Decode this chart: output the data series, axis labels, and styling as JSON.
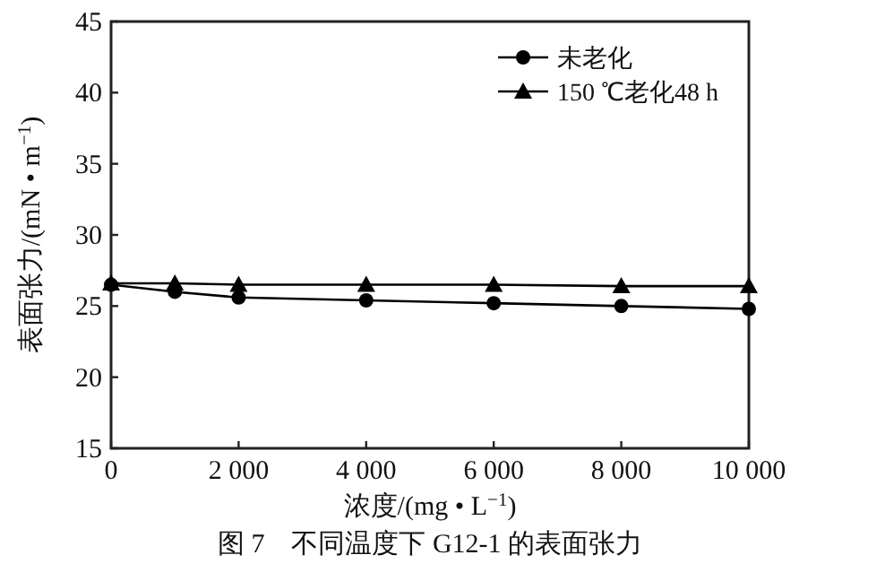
{
  "chart_data": {
    "type": "line",
    "xlabel": "浓度/(mg • L$^{−1}$)",
    "ylabel": "表面张力/(mN • m$^{−1}$)",
    "annotations": [
      "图 7　不同温度下 G12-1 的表面张力"
    ],
    "x": [
      0,
      1000,
      2000,
      4000,
      6000,
      8000,
      10000
    ],
    "series": [
      {
        "name": "未老化",
        "color": "#000000",
        "marker": "circle",
        "values": [
          26.5,
          26.0,
          25.6,
          25.4,
          25.2,
          25.0,
          24.8
        ]
      },
      {
        "name": "150 ℃老化48 h",
        "color": "#000000",
        "marker": "triangle",
        "values": [
          26.6,
          26.6,
          26.5,
          26.5,
          26.5,
          26.4,
          26.4
        ]
      }
    ],
    "xlim": [
      0,
      10000
    ],
    "xticks": [
      0,
      {
        "value": 2000,
        "label": "2 000"
      },
      {
        "value": 4000,
        "label": "4 000"
      },
      {
        "value": 6000,
        "label": "6 000"
      },
      {
        "value": 8000,
        "label": "8 000"
      },
      {
        "value": 10000,
        "label": "10 000"
      }
    ],
    "ylim": [
      15,
      45
    ],
    "yticks": [
      15,
      20,
      25,
      30,
      35,
      40,
      45
    ],
    "grid": false,
    "legend": "top right",
    "line_style": "solid"
  }
}
